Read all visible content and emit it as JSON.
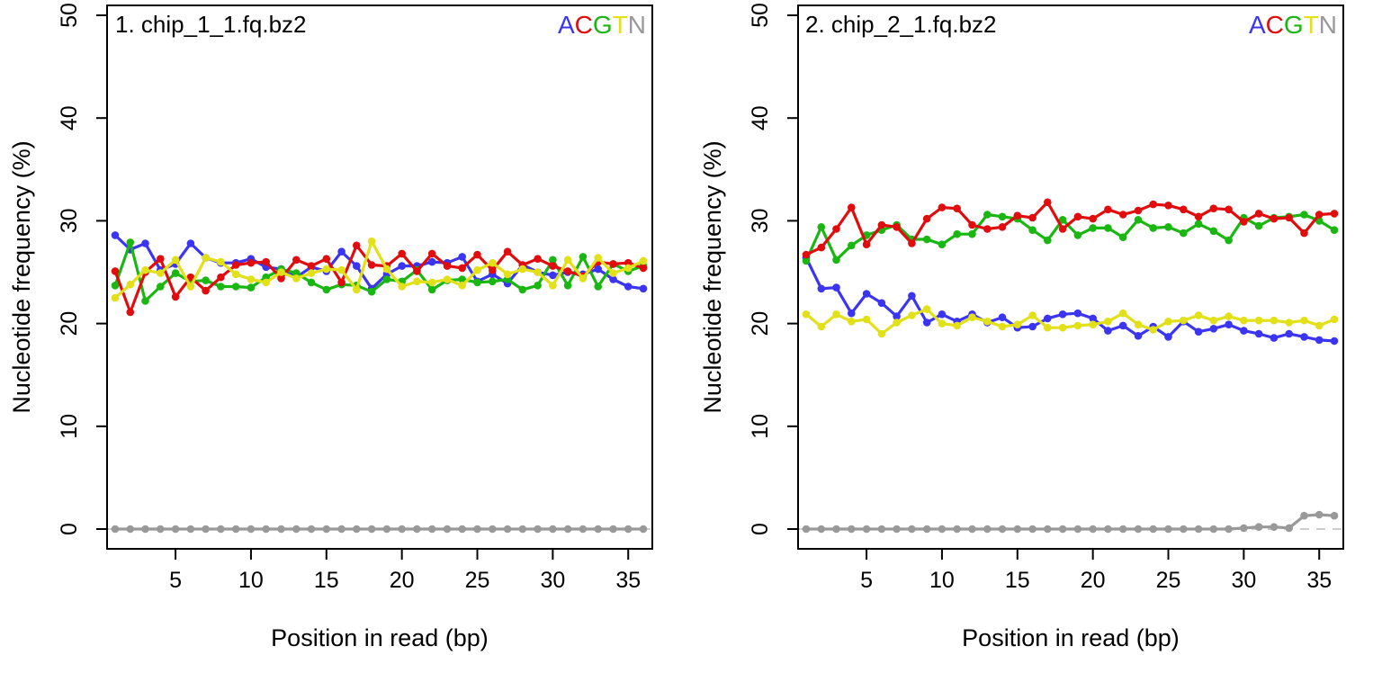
{
  "chart_data": [
    {
      "type": "line",
      "title": "1. chip_1_1.fq.bz2",
      "xlabel": "Position in read (bp)",
      "ylabel": "Nucleotide frequency (%)",
      "xlim": [
        1,
        36
      ],
      "ylim": [
        0,
        50
      ],
      "xticks": [
        5,
        10,
        15,
        20,
        25,
        30,
        35
      ],
      "yticks": [
        0,
        10,
        20,
        30,
        40,
        50
      ],
      "x": [
        1,
        2,
        3,
        4,
        5,
        6,
        7,
        8,
        9,
        10,
        11,
        12,
        13,
        14,
        15,
        16,
        17,
        18,
        19,
        20,
        21,
        22,
        23,
        24,
        25,
        26,
        27,
        28,
        29,
        30,
        31,
        32,
        33,
        34,
        35,
        36
      ],
      "legend": [
        "A",
        "C",
        "G",
        "T",
        "N"
      ],
      "legend_position": "top-right",
      "grid": false,
      "series": [
        {
          "name": "A",
          "color": "#3b35f1",
          "values": [
            28.6,
            27.2,
            27.8,
            25.2,
            25.8,
            27.8,
            26.4,
            25.9,
            25.9,
            26.3,
            25.5,
            25.3,
            24.5,
            25.5,
            25.1,
            27.0,
            25.6,
            23.4,
            24.8,
            25.6,
            25.6,
            26.0,
            25.9,
            26.5,
            24.1,
            24.8,
            23.9,
            25.7,
            25.0,
            24.7,
            25.0,
            24.8,
            25.3,
            24.3,
            23.6,
            23.4
          ]
        },
        {
          "name": "C",
          "color": "#e00c0e",
          "values": [
            25.1,
            21.1,
            25.0,
            26.3,
            22.6,
            24.5,
            23.2,
            24.5,
            25.7,
            25.9,
            26.0,
            24.4,
            26.2,
            25.6,
            26.3,
            24.0,
            27.6,
            25.7,
            25.6,
            26.8,
            25.1,
            26.8,
            25.6,
            25.4,
            26.7,
            25.2,
            27.0,
            25.7,
            26.3,
            25.6,
            25.1,
            24.6,
            26.0,
            25.8,
            25.9,
            25.4
          ]
        },
        {
          "name": "G",
          "color": "#1ab611",
          "values": [
            23.7,
            27.9,
            22.2,
            23.6,
            24.9,
            24.1,
            24.2,
            23.6,
            23.6,
            23.5,
            24.5,
            25.3,
            24.9,
            24.0,
            23.3,
            23.8,
            23.7,
            23.1,
            24.3,
            24.1,
            25.2,
            23.3,
            24.2,
            24.3,
            24.0,
            24.1,
            24.3,
            23.3,
            23.7,
            26.2,
            23.7,
            26.5,
            23.6,
            25.8,
            25.1,
            25.6
          ]
        },
        {
          "name": "T",
          "color": "#e2e018",
          "values": [
            22.5,
            23.8,
            25.2,
            24.9,
            26.2,
            23.6,
            26.4,
            26.0,
            24.8,
            24.3,
            24.0,
            25.0,
            24.4,
            24.9,
            25.3,
            25.2,
            23.3,
            28.0,
            25.3,
            23.6,
            24.1,
            24.0,
            24.3,
            23.7,
            25.2,
            25.9,
            24.8,
            25.3,
            25.0,
            23.7,
            26.2,
            24.4,
            26.4,
            24.9,
            25.4,
            26.1
          ]
        },
        {
          "name": "N",
          "color": "#999999",
          "values": [
            0,
            0,
            0,
            0,
            0,
            0,
            0,
            0,
            0,
            0,
            0,
            0,
            0,
            0,
            0,
            0,
            0,
            0,
            0,
            0,
            0,
            0,
            0,
            0,
            0,
            0,
            0,
            0,
            0,
            0,
            0,
            0,
            0,
            0,
            0,
            0
          ]
        }
      ]
    },
    {
      "type": "line",
      "title": "2. chip_2_1.fq.bz2",
      "xlabel": "Position in read (bp)",
      "ylabel": "Nucleotide frequency (%)",
      "xlim": [
        1,
        36
      ],
      "ylim": [
        0,
        50
      ],
      "xticks": [
        5,
        10,
        15,
        20,
        25,
        30,
        35
      ],
      "yticks": [
        0,
        10,
        20,
        30,
        40,
        50
      ],
      "x": [
        1,
        2,
        3,
        4,
        5,
        6,
        7,
        8,
        9,
        10,
        11,
        12,
        13,
        14,
        15,
        16,
        17,
        18,
        19,
        20,
        21,
        22,
        23,
        24,
        25,
        26,
        27,
        28,
        29,
        30,
        31,
        32,
        33,
        34,
        35,
        36
      ],
      "legend": [
        "A",
        "C",
        "G",
        "T",
        "N"
      ],
      "legend_position": "top-right",
      "grid": false,
      "series": [
        {
          "name": "A",
          "color": "#3b35f1",
          "values": [
            26.4,
            23.4,
            23.5,
            21.0,
            22.9,
            22.0,
            20.7,
            22.7,
            20.1,
            20.9,
            20.2,
            20.9,
            20.1,
            20.6,
            19.6,
            19.7,
            20.5,
            20.9,
            21.0,
            20.5,
            19.3,
            19.8,
            18.8,
            19.7,
            18.7,
            20.2,
            19.2,
            19.5,
            19.9,
            19.3,
            19.0,
            18.6,
            19.0,
            18.7,
            18.4,
            18.3
          ]
        },
        {
          "name": "C",
          "color": "#e00c0e",
          "values": [
            26.7,
            27.4,
            29.2,
            31.3,
            27.7,
            29.6,
            29.4,
            27.8,
            30.2,
            31.3,
            31.2,
            29.6,
            29.2,
            29.4,
            30.5,
            30.3,
            31.8,
            29.2,
            30.4,
            30.2,
            31.1,
            30.6,
            31.0,
            31.6,
            31.5,
            31.1,
            30.4,
            31.2,
            31.1,
            29.9,
            30.7,
            30.2,
            30.3,
            28.8,
            30.6,
            30.7
          ]
        },
        {
          "name": "G",
          "color": "#1ab611",
          "values": [
            26.1,
            29.4,
            26.2,
            27.6,
            28.6,
            29.1,
            29.6,
            28.2,
            28.2,
            27.7,
            28.7,
            28.7,
            30.6,
            30.4,
            30.2,
            29.1,
            28.1,
            30.1,
            28.6,
            29.3,
            29.3,
            28.4,
            30.1,
            29.3,
            29.4,
            28.8,
            29.7,
            29.0,
            28.1,
            30.3,
            29.5,
            30.3,
            30.4,
            30.6,
            30.0,
            29.1
          ]
        },
        {
          "name": "T",
          "color": "#e2e018",
          "values": [
            20.9,
            19.7,
            20.9,
            20.2,
            20.4,
            19.0,
            20.1,
            20.8,
            21.4,
            20.0,
            19.8,
            20.6,
            20.2,
            19.7,
            19.9,
            20.8,
            19.6,
            19.6,
            19.8,
            19.9,
            20.2,
            21.0,
            19.9,
            19.4,
            20.2,
            20.3,
            20.8,
            20.3,
            20.7,
            20.3,
            20.3,
            20.3,
            20.1,
            20.3,
            19.8,
            20.4
          ]
        },
        {
          "name": "N",
          "color": "#999999",
          "values": [
            0,
            0,
            0,
            0,
            0,
            0,
            0,
            0,
            0,
            0,
            0,
            0,
            0,
            0,
            0,
            0,
            0,
            0,
            0,
            0,
            0,
            0,
            0,
            0,
            0,
            0,
            0,
            0,
            0,
            0.1,
            0.2,
            0.2,
            0.1,
            1.3,
            1.4,
            1.3
          ]
        }
      ]
    }
  ]
}
